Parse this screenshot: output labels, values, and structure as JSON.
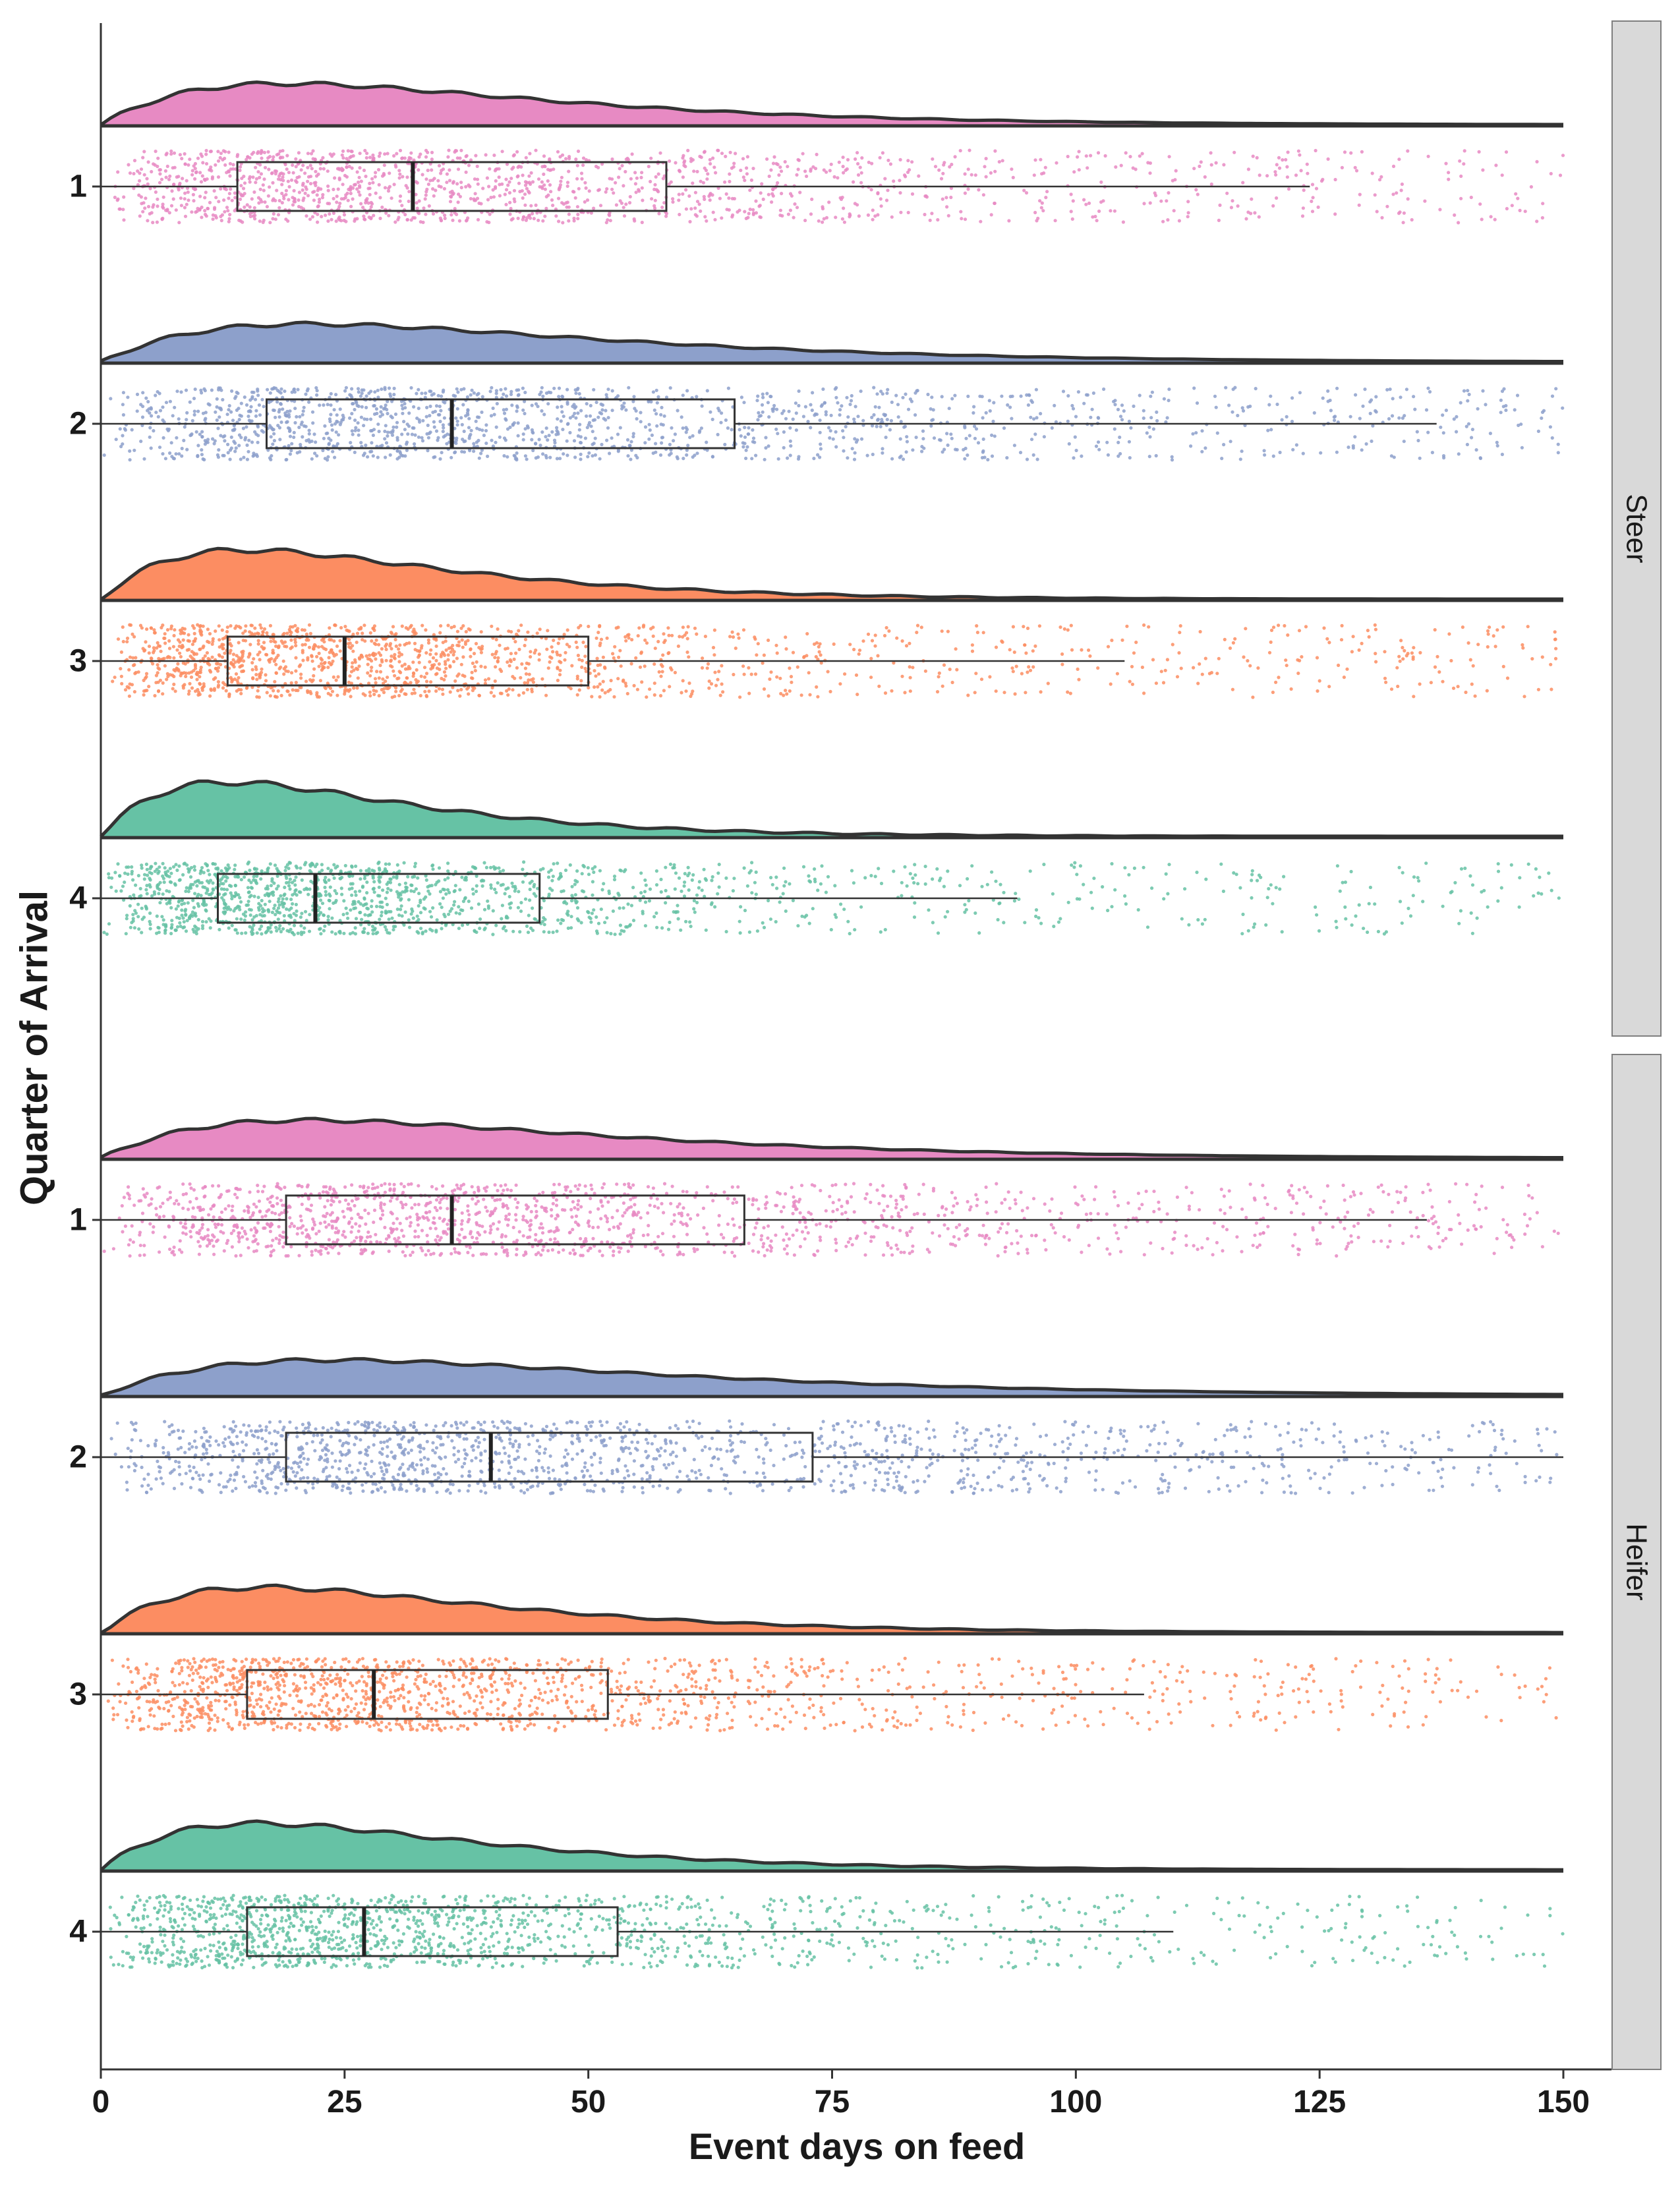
{
  "chart_data": {
    "type": "raincloud",
    "xlabel": "Event days on feed",
    "ylabel": "Quarter of Arrival",
    "xlim": [
      0,
      150
    ],
    "x_ticks": [
      "0",
      "25",
      "50",
      "75",
      "100",
      "125",
      "150"
    ],
    "quarter_colors": {
      "1": "#e78ac3",
      "2": "#8da0cb",
      "3": "#fc8d62",
      "4": "#66c2a5"
    },
    "facets": [
      {
        "name": "Steer",
        "groups": [
          {
            "quarter": "1",
            "min": 0,
            "q1": 14,
            "median": 32,
            "q3": 58,
            "whisker_high": 124,
            "max": 150
          },
          {
            "quarter": "2",
            "min": 0,
            "q1": 17,
            "median": 36,
            "q3": 65,
            "whisker_high": 137,
            "max": 150
          },
          {
            "quarter": "3",
            "min": 0,
            "q1": 13,
            "median": 25,
            "q3": 50,
            "whisker_high": 105,
            "max": 150
          },
          {
            "quarter": "4",
            "min": 0,
            "q1": 12,
            "median": 22,
            "q3": 45,
            "whisker_high": 94,
            "max": 150
          }
        ]
      },
      {
        "name": "Heifer",
        "groups": [
          {
            "quarter": "1",
            "min": 0,
            "q1": 19,
            "median": 36,
            "q3": 66,
            "whisker_high": 136,
            "max": 150
          },
          {
            "quarter": "2",
            "min": 0,
            "q1": 19,
            "median": 40,
            "q3": 73,
            "whisker_high": 150,
            "max": 150
          },
          {
            "quarter": "3",
            "min": 0,
            "q1": 15,
            "median": 28,
            "q3": 52,
            "whisker_high": 107,
            "max": 150
          },
          {
            "quarter": "4",
            "min": 0,
            "q1": 15,
            "median": 27,
            "q3": 53,
            "whisker_high": 110,
            "max": 150
          }
        ]
      }
    ]
  }
}
